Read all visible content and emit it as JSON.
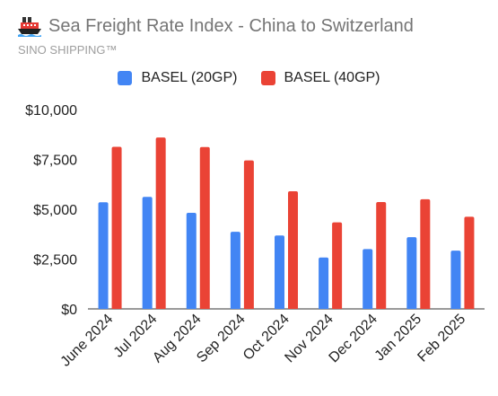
{
  "header": {
    "icon": "ship-icon",
    "title": "Sea Freight Rate Index - China to Switzerland",
    "subtitle": "SINO SHIPPING™"
  },
  "chart_data": {
    "type": "bar",
    "categories": [
      "June 2024",
      "Jul 2024",
      "Aug 2024",
      "Sep 2024",
      "Oct 2024",
      "Nov 2024",
      "Dec 2024",
      "Jan 2025",
      "Feb 2025"
    ],
    "series": [
      {
        "name": "BASEL (20GP)",
        "color": "#4285f4",
        "values": [
          5350,
          5620,
          4820,
          3870,
          3680,
          2580,
          3000,
          3600,
          2920
        ]
      },
      {
        "name": "BASEL (40GP)",
        "color": "#ea4335",
        "values": [
          8130,
          8600,
          8120,
          7450,
          5900,
          4340,
          5360,
          5500,
          4620
        ]
      }
    ],
    "ylim": [
      0,
      10000
    ],
    "yticks": [
      0,
      2500,
      5000,
      7500,
      10000
    ],
    "ytick_labels": [
      "$0",
      "$2,500",
      "$5,000",
      "$7,500",
      "$10,000"
    ],
    "legend_position": "top",
    "grid": false
  }
}
